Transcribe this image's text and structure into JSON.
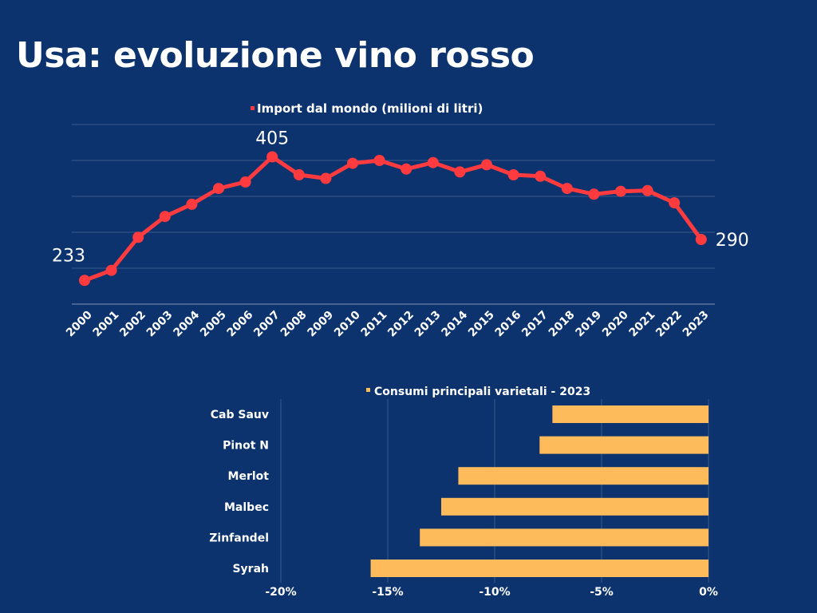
{
  "title": "Usa: evoluzione vino rosso",
  "chart_data": [
    {
      "type": "line",
      "title": "Import dal mondo (milioni di litri)",
      "legend": "top",
      "color": "#ff3b3f",
      "x": [
        "2000",
        "2001",
        "2002",
        "2003",
        "2004",
        "2005",
        "2006",
        "2007",
        "2008",
        "2009",
        "2010",
        "2011",
        "2012",
        "2013",
        "2014",
        "2015",
        "2016",
        "2017",
        "2018",
        "2019",
        "2020",
        "2021",
        "2022",
        "2023"
      ],
      "values": [
        233,
        247,
        293,
        322,
        339,
        361,
        370,
        405,
        380,
        375,
        396,
        400,
        388,
        397,
        384,
        394,
        380,
        378,
        361,
        353,
        357,
        358,
        341,
        290
      ],
      "data_labels": {
        "0": "233",
        "7": "405",
        "23": "290"
      },
      "ylim": [
        200,
        450
      ],
      "grid": true
    },
    {
      "type": "bar",
      "orientation": "horizontal",
      "title": "Consumi principali varietali - 2023",
      "legend": "top",
      "color": "#fdbb5c",
      "categories": [
        "Cab Sauv",
        "Pinot N",
        "Merlot",
        "Malbec",
        "Zinfandel",
        "Syrah"
      ],
      "values": [
        -7.3,
        -7.9,
        -11.7,
        -12.5,
        -13.5,
        -15.8
      ],
      "xticks": [
        "-20%",
        "-15%",
        "-10%",
        "-5%",
        "0%"
      ],
      "xlim": [
        -20,
        0
      ],
      "grid": true
    }
  ]
}
